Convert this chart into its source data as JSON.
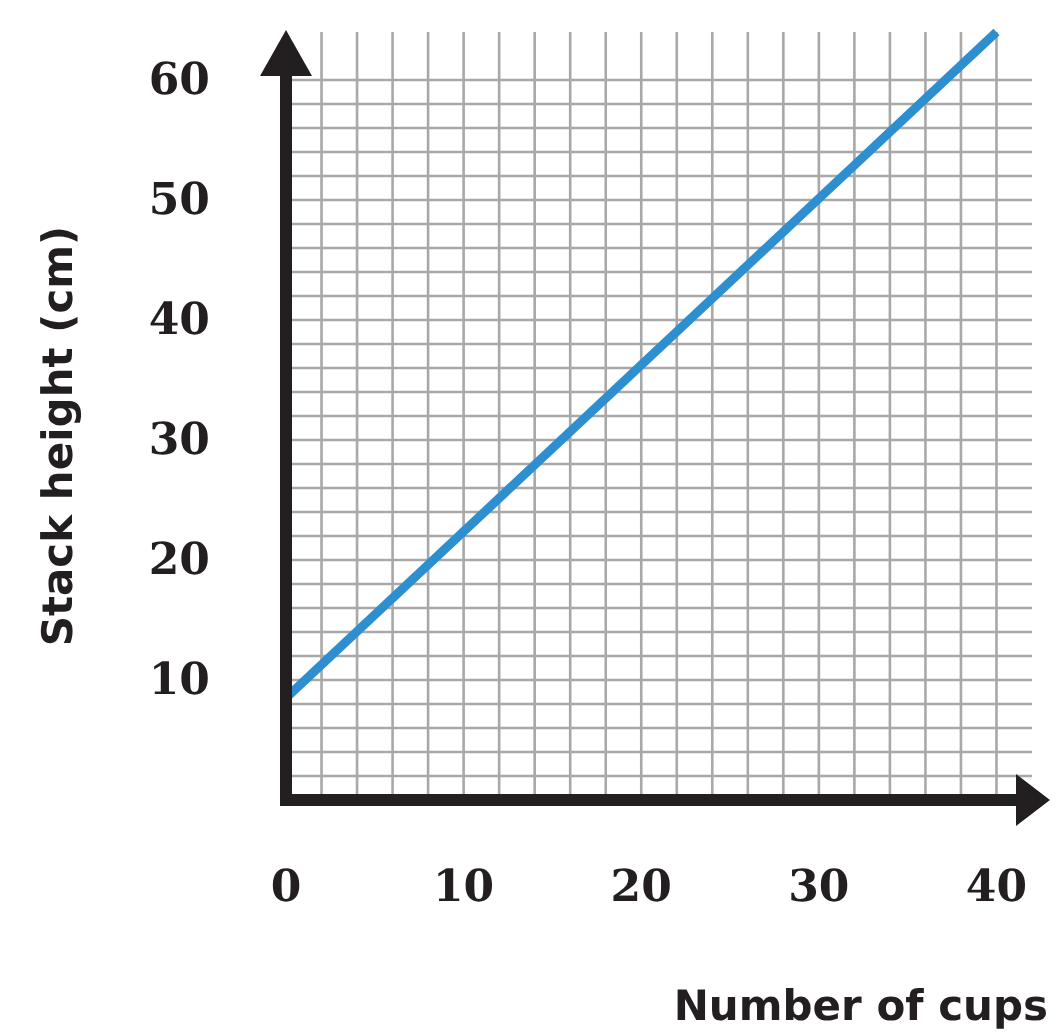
{
  "chart_data": {
    "type": "line",
    "xlabel": "Number of cups",
    "ylabel": "Stack height (cm)",
    "x": [
      0,
      40
    ],
    "series": [
      {
        "color": "#2e8fd0",
        "values": [
          8.5,
          64
        ]
      }
    ],
    "xlim": [
      0,
      42
    ],
    "ylim": [
      0,
      64
    ],
    "xticks": [
      0,
      {
        "value": 2,
        "label": null
      },
      {
        "value": 4,
        "label": null
      },
      {
        "value": 6,
        "label": null
      },
      {
        "value": 8,
        "label": null
      },
      10,
      {
        "value": 12,
        "label": null
      },
      {
        "value": 14,
        "label": null
      },
      {
        "value": 16,
        "label": null
      },
      {
        "value": 18,
        "label": null
      },
      20,
      {
        "value": 22,
        "label": null
      },
      {
        "value": 24,
        "label": null
      },
      {
        "value": 26,
        "label": null
      },
      {
        "value": 28,
        "label": null
      },
      30,
      {
        "value": 32,
        "label": null
      },
      {
        "value": 34,
        "label": null
      },
      {
        "value": 36,
        "label": null
      },
      {
        "value": 38,
        "label": null
      },
      40
    ],
    "yticks": [
      {
        "value": 2,
        "label": null
      },
      {
        "value": 4,
        "label": null
      },
      {
        "value": 6,
        "label": null
      },
      {
        "value": 8,
        "label": null
      },
      10,
      {
        "value": 12,
        "label": null
      },
      {
        "value": 14,
        "label": null
      },
      {
        "value": 16,
        "label": null
      },
      {
        "value": 18,
        "label": null
      },
      20,
      {
        "value": 22,
        "label": null
      },
      {
        "value": 24,
        "label": null
      },
      {
        "value": 26,
        "label": null
      },
      {
        "value": 28,
        "label": null
      },
      30,
      {
        "value": 32,
        "label": null
      },
      {
        "value": 34,
        "label": null
      },
      {
        "value": 36,
        "label": null
      },
      {
        "value": 38,
        "label": null
      },
      40,
      {
        "value": 42,
        "label": null
      },
      {
        "value": 44,
        "label": null
      },
      {
        "value": 46,
        "label": null
      },
      {
        "value": 48,
        "label": null
      },
      50,
      {
        "value": 52,
        "label": null
      },
      {
        "value": 54,
        "label": null
      },
      {
        "value": 56,
        "label": null
      },
      {
        "value": 58,
        "label": null
      },
      60
    ],
    "grid": true,
    "marker": "none",
    "line_style": "solid"
  }
}
